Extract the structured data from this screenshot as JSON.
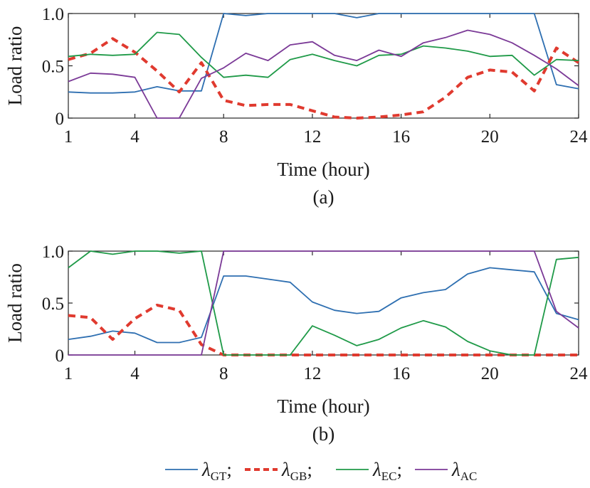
{
  "chart_data": [
    {
      "type": "line",
      "panel_label": "(a)",
      "xlabel": "Time (hour)",
      "ylabel": "Load ratio",
      "xlim": [
        1,
        24
      ],
      "ylim": [
        0,
        1
      ],
      "xticks": [
        "1",
        "4",
        "8",
        "12",
        "16",
        "20",
        "24"
      ],
      "yticks": [
        "0",
        "0.5",
        "1.0"
      ],
      "series": [
        {
          "key": "GT",
          "color": "#2e6fb1",
          "dashed": false,
          "x": [
            1,
            2,
            3,
            4,
            5,
            6,
            7,
            8,
            9,
            10,
            11,
            12,
            13,
            14,
            15,
            16,
            17,
            18,
            19,
            20,
            21,
            22,
            23,
            24
          ],
          "y": [
            0.25,
            0.24,
            0.24,
            0.25,
            0.3,
            0.26,
            0.26,
            1.0,
            0.98,
            1.0,
            1.0,
            1.0,
            1.0,
            0.96,
            1.0,
            1.0,
            1.0,
            1.0,
            1.0,
            1.0,
            1.0,
            1.0,
            0.32,
            0.28
          ]
        },
        {
          "key": "GB",
          "color": "#e03a2f",
          "dashed": true,
          "x": [
            1,
            2,
            3,
            4,
            5,
            6,
            7,
            8,
            9,
            10,
            11,
            12,
            13,
            14,
            15,
            16,
            17,
            18,
            19,
            20,
            21,
            22,
            23,
            24
          ],
          "y": [
            0.56,
            0.62,
            0.76,
            0.63,
            0.45,
            0.25,
            0.53,
            0.17,
            0.12,
            0.13,
            0.13,
            0.07,
            0.01,
            0.0,
            0.01,
            0.03,
            0.06,
            0.2,
            0.39,
            0.46,
            0.44,
            0.26,
            0.67,
            0.53
          ]
        },
        {
          "key": "EC",
          "color": "#1f9a48",
          "dashed": false,
          "x": [
            1,
            2,
            3,
            4,
            5,
            6,
            7,
            8,
            9,
            10,
            11,
            12,
            13,
            14,
            15,
            16,
            17,
            18,
            19,
            20,
            21,
            22,
            23,
            24
          ],
          "y": [
            0.59,
            0.61,
            0.6,
            0.61,
            0.82,
            0.8,
            0.58,
            0.39,
            0.41,
            0.39,
            0.56,
            0.61,
            0.55,
            0.5,
            0.6,
            0.61,
            0.69,
            0.67,
            0.64,
            0.59,
            0.6,
            0.41,
            0.56,
            0.55
          ]
        },
        {
          "key": "AC",
          "color": "#7b3a97",
          "dashed": false,
          "x": [
            1,
            2,
            3,
            4,
            5,
            6,
            7,
            8,
            9,
            10,
            11,
            12,
            13,
            14,
            15,
            16,
            17,
            18,
            19,
            20,
            21,
            22,
            23,
            24
          ],
          "y": [
            0.35,
            0.43,
            0.42,
            0.39,
            0.0,
            0.0,
            0.38,
            0.48,
            0.62,
            0.55,
            0.7,
            0.73,
            0.6,
            0.55,
            0.65,
            0.59,
            0.72,
            0.77,
            0.84,
            0.8,
            0.72,
            0.6,
            0.47,
            0.31
          ]
        }
      ]
    },
    {
      "type": "line",
      "panel_label": "(b)",
      "xlabel": "Time (hour)",
      "ylabel": "Load ratio",
      "xlim": [
        1,
        24
      ],
      "ylim": [
        0,
        1
      ],
      "xticks": [
        "1",
        "4",
        "8",
        "12",
        "16",
        "20",
        "24"
      ],
      "yticks": [
        "0",
        "0.5",
        "1.0"
      ],
      "series": [
        {
          "key": "GT",
          "color": "#2e6fb1",
          "dashed": false,
          "x": [
            1,
            2,
            3,
            4,
            5,
            6,
            7,
            8,
            9,
            10,
            11,
            12,
            13,
            14,
            15,
            16,
            17,
            18,
            19,
            20,
            21,
            22,
            23,
            24
          ],
          "y": [
            0.15,
            0.18,
            0.23,
            0.21,
            0.12,
            0.12,
            0.17,
            0.76,
            0.76,
            0.73,
            0.7,
            0.51,
            0.43,
            0.4,
            0.42,
            0.55,
            0.6,
            0.63,
            0.78,
            0.84,
            0.82,
            0.8,
            0.4,
            0.34
          ]
        },
        {
          "key": "GB",
          "color": "#e03a2f",
          "dashed": true,
          "x": [
            1,
            2,
            3,
            4,
            5,
            6,
            7,
            8,
            9,
            10,
            11,
            12,
            13,
            14,
            15,
            16,
            17,
            18,
            19,
            20,
            21,
            22,
            23,
            24
          ],
          "y": [
            0.38,
            0.36,
            0.15,
            0.35,
            0.48,
            0.43,
            0.1,
            0.0,
            0.0,
            0.0,
            0.0,
            0.0,
            0.0,
            0.0,
            0.0,
            0.0,
            0.0,
            0.0,
            0.0,
            0.0,
            0.0,
            0.0,
            0.0,
            0.0
          ]
        },
        {
          "key": "EC",
          "color": "#1f9a48",
          "dashed": false,
          "x": [
            1,
            2,
            3,
            4,
            5,
            6,
            7,
            8,
            9,
            10,
            11,
            12,
            13,
            14,
            15,
            16,
            17,
            18,
            19,
            20,
            21,
            22,
            23,
            24
          ],
          "y": [
            0.84,
            1.0,
            0.97,
            1.0,
            1.0,
            0.98,
            1.0,
            0.0,
            0.0,
            0.0,
            0.0,
            0.28,
            0.19,
            0.09,
            0.15,
            0.26,
            0.33,
            0.27,
            0.13,
            0.04,
            0.0,
            0.0,
            0.92,
            0.94
          ]
        },
        {
          "key": "AC",
          "color": "#7b3a97",
          "dashed": false,
          "x": [
            1,
            2,
            3,
            4,
            5,
            6,
            7,
            8,
            9,
            10,
            11,
            12,
            13,
            14,
            15,
            16,
            17,
            18,
            19,
            20,
            21,
            22,
            23,
            24
          ],
          "y": [
            0.0,
            0.0,
            0.0,
            0.0,
            0.0,
            0.0,
            0.0,
            1.0,
            1.0,
            1.0,
            1.0,
            1.0,
            1.0,
            1.0,
            1.0,
            1.0,
            1.0,
            1.0,
            1.0,
            1.0,
            1.0,
            1.0,
            0.42,
            0.26
          ]
        }
      ]
    }
  ],
  "legend": {
    "symbol": "λ",
    "separator": ";",
    "items": [
      {
        "key": "GT",
        "sub": "GT",
        "color": "#2e6fb1",
        "dashed": false
      },
      {
        "key": "GB",
        "sub": "GB",
        "color": "#e03a2f",
        "dashed": true
      },
      {
        "key": "EC",
        "sub": "EC",
        "color": "#1f9a48",
        "dashed": false
      },
      {
        "key": "AC",
        "sub": "AC",
        "color": "#7b3a97",
        "dashed": false
      }
    ]
  }
}
